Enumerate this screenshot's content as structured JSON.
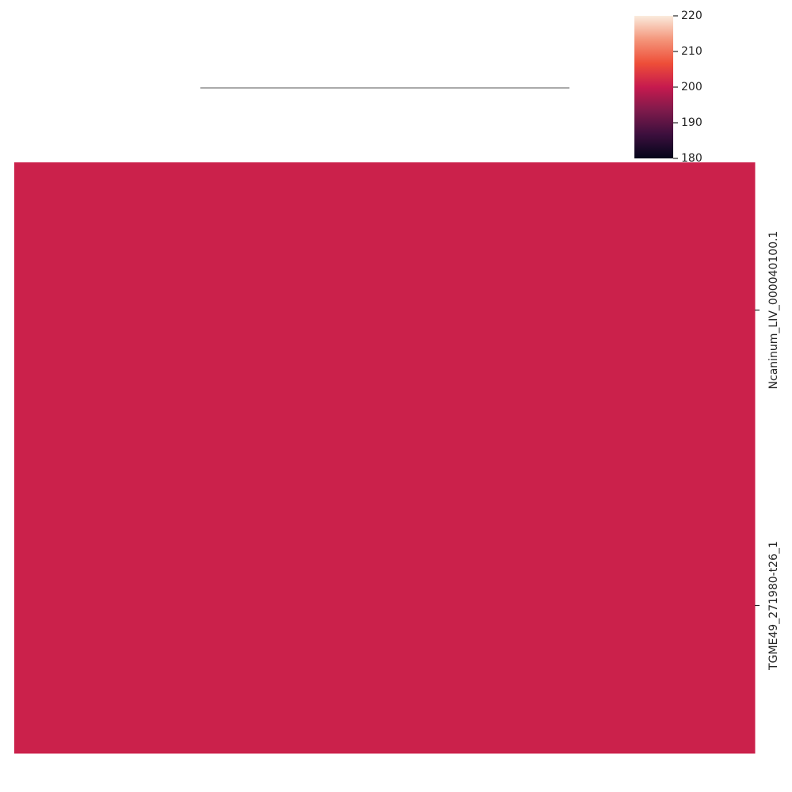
{
  "chart_data": {
    "type": "heatmap",
    "title": "",
    "xlabel": "",
    "ylabel": "",
    "rows": [
      "Ncaninum_LIV_000040100.1",
      "TGME49_271980-t26_1"
    ],
    "columns": [
      ""
    ],
    "values": [
      [
        200.9
      ],
      [
        200.9
      ]
    ],
    "column_dendrogram": true,
    "colorbar": {
      "range": [
        180,
        220
      ],
      "ticks": [
        "180",
        "190",
        "200",
        "210",
        "220"
      ],
      "colormap": "rocket",
      "stops": [
        "#03051a",
        "#3c0f3d",
        "#7d1a4b",
        "#c61a4e",
        "#ee4e38",
        "#f4957a",
        "#faebdd"
      ]
    }
  }
}
